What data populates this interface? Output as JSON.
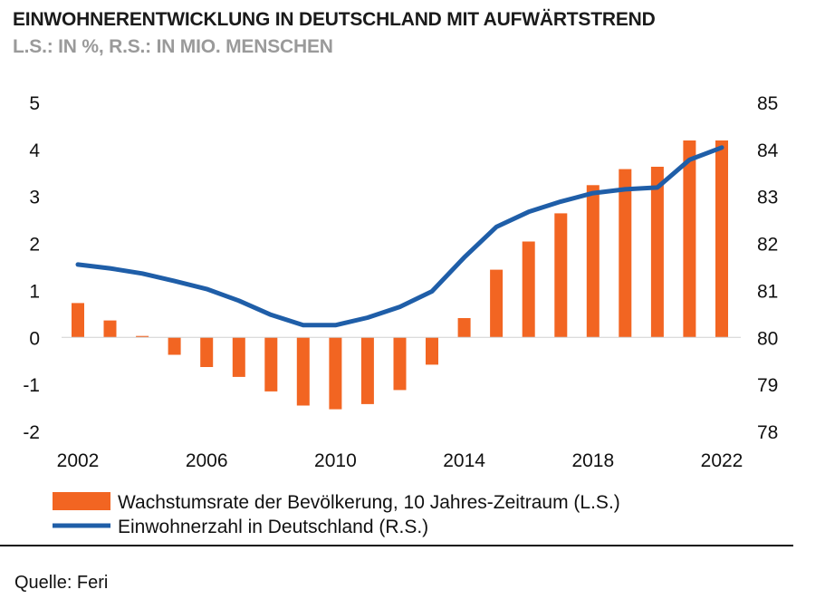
{
  "chart_data": {
    "type": "bar+line",
    "title": "EINWOHNERENTWICKLUNG IN DEUTSCHLAND MIT AUFWÄRTSTREND",
    "subtitle": "L.S.: IN %, R.S.: IN MIO. MENSCHEN",
    "x": [
      2002,
      2003,
      2004,
      2005,
      2006,
      2007,
      2008,
      2009,
      2010,
      2011,
      2012,
      2013,
      2014,
      2015,
      2016,
      2017,
      2018,
      2019,
      2020,
      2021,
      2022
    ],
    "x_ticks": [
      "2002",
      "2006",
      "2010",
      "2014",
      "2018",
      "2022"
    ],
    "y_left": {
      "range": [
        -2,
        5
      ],
      "ticks": [
        "5",
        "4",
        "3",
        "2",
        "1",
        "0",
        "-1",
        "-2"
      ]
    },
    "y_right": {
      "range": [
        78,
        85
      ],
      "ticks": [
        "85",
        "84",
        "83",
        "82",
        "81",
        "80",
        "79",
        "78"
      ]
    },
    "series": [
      {
        "name": "Wachstumsrate der Bevölkerung, 10 Jahres-Zeitraum (L.S.)",
        "type": "bar",
        "axis": "left",
        "color": "#f26522",
        "values": [
          0.73,
          0.36,
          0.03,
          -0.37,
          -0.63,
          -0.84,
          -1.15,
          -1.45,
          -1.53,
          -1.42,
          -1.12,
          -0.58,
          0.41,
          1.44,
          2.04,
          2.64,
          3.24,
          3.58,
          3.63,
          4.19,
          4.19
        ]
      },
      {
        "name": "Einwohnerzahl in Deutschland (R.S.)",
        "type": "line",
        "axis": "right",
        "color": "#1f5ea8",
        "values": [
          81.55,
          81.47,
          81.36,
          81.2,
          81.03,
          80.78,
          80.48,
          80.26,
          80.26,
          80.42,
          80.65,
          80.98,
          81.7,
          82.35,
          82.67,
          82.89,
          83.07,
          83.15,
          83.19,
          83.78,
          84.04
        ]
      }
    ]
  },
  "source": "Quelle: Feri"
}
